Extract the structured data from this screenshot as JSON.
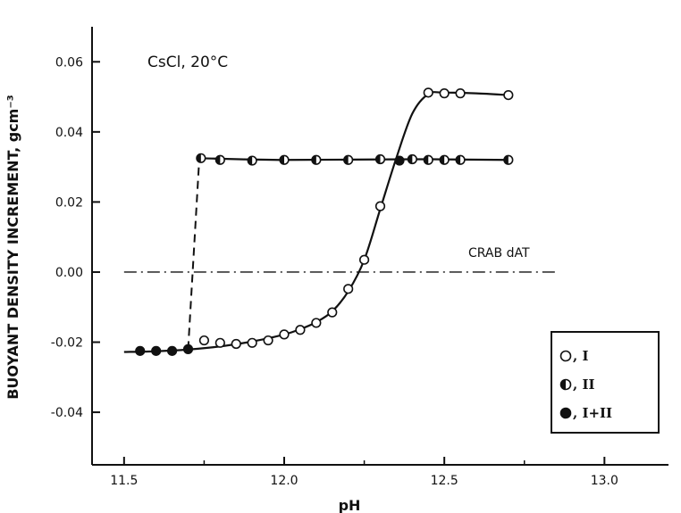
{
  "chart_data": {
    "type": "scatter",
    "title": "",
    "annotation": "CsCl, 20°C",
    "xlabel": "pH",
    "ylabel": "BUOYANT DENSITY INCREMENT, gcm⁻³",
    "xlim": [
      11.4,
      13.2
    ],
    "ylim": [
      -0.055,
      0.07
    ],
    "x_ticks": [
      "11.5",
      "12.0",
      "12.5",
      "13.0"
    ],
    "x_tick_values": [
      11.5,
      12.0,
      12.5,
      13.0
    ],
    "y_ticks": [
      "0.06",
      "0.04",
      "0.02",
      "0.00",
      "-0.02",
      "-0.04"
    ],
    "y_tick_values": [
      0.06,
      0.04,
      0.02,
      0.0,
      -0.02,
      -0.04
    ],
    "grid": false,
    "legend_position": "bottom-right",
    "reference_line": {
      "label": "CRAB dAT",
      "y": 0.0,
      "x_start": 11.5,
      "x_end": 12.85,
      "style": "dash-dot"
    },
    "series": [
      {
        "name": "I",
        "marker": "open-circle",
        "points": [
          [
            11.75,
            -0.0195
          ],
          [
            11.8,
            -0.0202
          ],
          [
            11.85,
            -0.0205
          ],
          [
            11.9,
            -0.0202
          ],
          [
            11.95,
            -0.0195
          ],
          [
            12.0,
            -0.0178
          ],
          [
            12.05,
            -0.0165
          ],
          [
            12.1,
            -0.0145
          ],
          [
            12.15,
            -0.0115
          ],
          [
            12.2,
            -0.0048
          ],
          [
            12.25,
            0.0035
          ],
          [
            12.3,
            0.0188
          ],
          [
            12.45,
            0.0512
          ],
          [
            12.5,
            0.051
          ],
          [
            12.55,
            0.051
          ],
          [
            12.7,
            0.0505
          ]
        ]
      },
      {
        "name": "II",
        "marker": "half-filled-circle",
        "points": [
          [
            11.74,
            0.0325
          ],
          [
            11.8,
            0.032
          ],
          [
            11.9,
            0.0318
          ],
          [
            12.0,
            0.032
          ],
          [
            12.1,
            0.032
          ],
          [
            12.2,
            0.032
          ],
          [
            12.3,
            0.0322
          ],
          [
            12.4,
            0.0322
          ],
          [
            12.45,
            0.032
          ],
          [
            12.5,
            0.032
          ],
          [
            12.55,
            0.032
          ],
          [
            12.7,
            0.032
          ]
        ]
      },
      {
        "name": "I+II",
        "marker": "filled-circle",
        "points": [
          [
            11.55,
            -0.0225
          ],
          [
            11.6,
            -0.0225
          ],
          [
            11.65,
            -0.0225
          ],
          [
            11.7,
            -0.022
          ],
          [
            12.36,
            0.0318
          ]
        ]
      }
    ],
    "curves": [
      {
        "series": "I",
        "style": "solid",
        "points": [
          [
            11.5,
            -0.0228
          ],
          [
            11.6,
            -0.0226
          ],
          [
            11.7,
            -0.0221
          ],
          [
            11.8,
            -0.0212
          ],
          [
            11.9,
            -0.0198
          ],
          [
            12.0,
            -0.0178
          ],
          [
            12.05,
            -0.0163
          ],
          [
            12.1,
            -0.0143
          ],
          [
            12.15,
            -0.0112
          ],
          [
            12.2,
            -0.0055
          ],
          [
            12.25,
            0.0035
          ],
          [
            12.3,
            0.018
          ],
          [
            12.35,
            0.0325
          ],
          [
            12.4,
            0.0452
          ],
          [
            12.45,
            0.0508
          ],
          [
            12.5,
            0.0512
          ],
          [
            12.6,
            0.051
          ],
          [
            12.7,
            0.0505
          ]
        ]
      },
      {
        "series": "II",
        "style": "dashed",
        "points": [
          [
            11.7,
            -0.022
          ],
          [
            11.735,
            0.0325
          ]
        ]
      },
      {
        "series": "II",
        "style": "solid",
        "points": [
          [
            11.735,
            0.0325
          ],
          [
            12.0,
            0.032
          ],
          [
            12.4,
            0.0322
          ],
          [
            12.7,
            0.032
          ]
        ]
      }
    ],
    "legend": [
      {
        "marker": "open-circle",
        "label": "○, I"
      },
      {
        "marker": "half-filled-circle",
        "label": "◐, II"
      },
      {
        "marker": "filled-circle",
        "label": "●, I+II"
      }
    ],
    "legend_labels": [
      ", I",
      ", II",
      ", I+II"
    ]
  }
}
